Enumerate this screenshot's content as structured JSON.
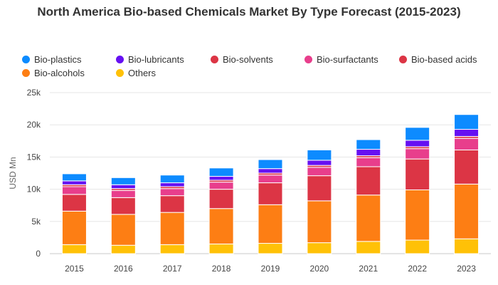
{
  "chart_data": {
    "type": "bar",
    "stacked": true,
    "title": "North America Bio-based Chemicals Market By Type Forecast (2015-2023)",
    "xlabel": "",
    "ylabel": "USD Mn",
    "ylim": [
      0,
      25000
    ],
    "yticks": [
      0,
      5000,
      10000,
      15000,
      20000,
      25000
    ],
    "ytick_labels": [
      "0",
      "5k",
      "10k",
      "15k",
      "20k",
      "25k"
    ],
    "grid": true,
    "legend_position": "top",
    "categories": [
      "2015",
      "2016",
      "2017",
      "2018",
      "2019",
      "2020",
      "2021",
      "2022",
      "2023"
    ],
    "series": [
      {
        "name": "Others",
        "color": "#FFC107",
        "values": [
          1400,
          1300,
          1400,
          1500,
          1600,
          1700,
          1900,
          2100,
          2300
        ]
      },
      {
        "name": "Bio-alcohols",
        "color": "#FD7E14",
        "values": [
          5200,
          4800,
          5000,
          5500,
          6000,
          6500,
          7200,
          7800,
          8500
        ]
      },
      {
        "name": "Bio-based acids",
        "color": "#DC3545",
        "values": [
          2600,
          2600,
          2600,
          3000,
          3400,
          3900,
          4400,
          4800,
          5300
        ]
      },
      {
        "name": "Bio-surfactants",
        "color": "#E83E8C",
        "values": [
          1200,
          1100,
          1100,
          1100,
          1200,
          1300,
          1400,
          1600,
          1800
        ]
      },
      {
        "name": "Bio-solvents",
        "color": "#DC3545",
        "values": [
          300,
          300,
          300,
          300,
          300,
          300,
          300,
          300,
          300
        ]
      },
      {
        "name": "Bio-lubricants",
        "color": "#6610F2",
        "values": [
          600,
          600,
          600,
          600,
          700,
          800,
          1000,
          1000,
          1100
        ]
      },
      {
        "name": "Bio-plastics",
        "color": "#0D8BFF",
        "values": [
          1100,
          1100,
          1200,
          1300,
          1400,
          1600,
          1500,
          2000,
          2300
        ]
      }
    ]
  },
  "legend": [
    {
      "label": "Bio-plastics",
      "color": "#0D8BFF"
    },
    {
      "label": "Bio-lubricants",
      "color": "#6610F2"
    },
    {
      "label": "Bio-solvents",
      "color": "#DC3545"
    },
    {
      "label": "Bio-surfactants",
      "color": "#E83E8C"
    },
    {
      "label": "Bio-based acids",
      "color": "#DC3545"
    },
    {
      "label": "Bio-alcohols",
      "color": "#FD7E14"
    },
    {
      "label": "Others",
      "color": "#FFC107"
    }
  ]
}
